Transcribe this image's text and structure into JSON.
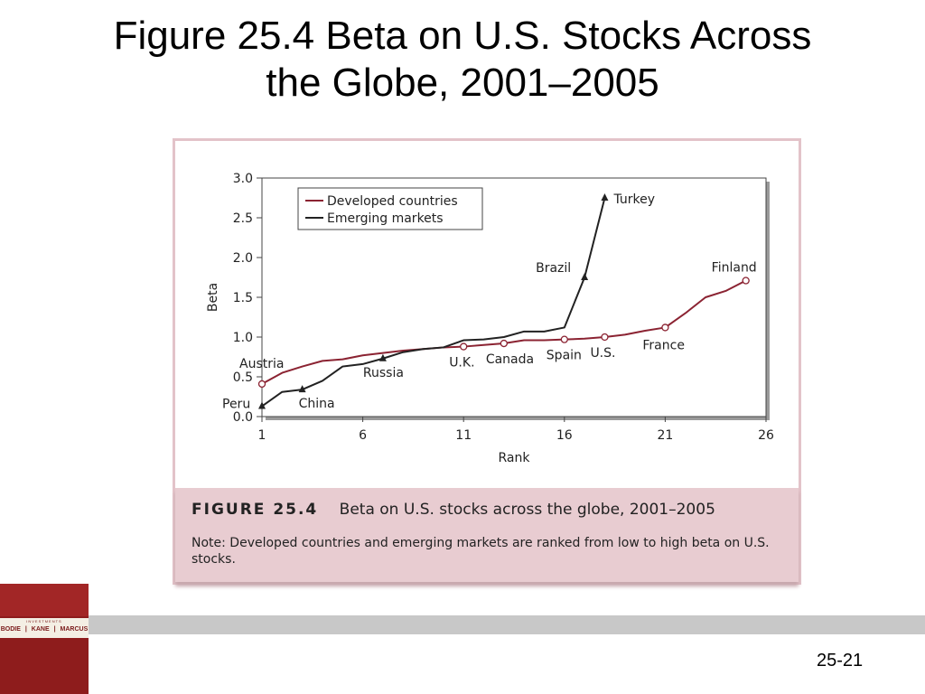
{
  "slide": {
    "title_line1": "Figure 25.4 Beta on U.S. Stocks Across",
    "title_line2": "the Globe, 2001–2005",
    "slide_number": "25-21"
  },
  "caption": {
    "label": "FIGURE 25.4",
    "title": "Beta on U.S. stocks across the globe, 2001–2005",
    "note": "Note: Developed countries and emerging markets are ranked from low to high beta on U.S. stocks."
  },
  "book": {
    "top_text": "INVESTMENTS",
    "authors": [
      "BODIE",
      "KANE",
      "MARCUS"
    ]
  },
  "chart_data": {
    "type": "line",
    "xlabel": "Rank",
    "ylabel": "Beta",
    "xlim": [
      1,
      26
    ],
    "ylim": [
      0,
      3
    ],
    "x_ticks": [
      1,
      6,
      11,
      16,
      21,
      26
    ],
    "y_ticks": [
      "0.0",
      "0.5",
      "1.0",
      "1.5",
      "2.0",
      "2.5",
      "3.0"
    ],
    "legend_position": "top-left",
    "series": [
      {
        "name": "Developed countries",
        "color": "#8b2332",
        "x": [
          1,
          2,
          3,
          4,
          5,
          6,
          7,
          8,
          9,
          10,
          11,
          12,
          13,
          14,
          15,
          16,
          17,
          18,
          19,
          20,
          21,
          22,
          23,
          24,
          25
        ],
        "y": [
          0.41,
          0.55,
          0.63,
          0.7,
          0.72,
          0.77,
          0.8,
          0.83,
          0.85,
          0.87,
          0.88,
          0.9,
          0.92,
          0.96,
          0.96,
          0.97,
          0.98,
          1.0,
          1.03,
          1.08,
          1.12,
          1.3,
          1.5,
          1.58,
          1.71
        ],
        "labeled_points": [
          {
            "x": 1,
            "y": 0.41,
            "label": "Austria"
          },
          {
            "x": 11,
            "y": 0.88,
            "label": "U.K."
          },
          {
            "x": 13,
            "y": 0.92,
            "label": "Canada"
          },
          {
            "x": 16,
            "y": 0.97,
            "label": "Spain"
          },
          {
            "x": 18,
            "y": 1.0,
            "label": "U.S."
          },
          {
            "x": 21,
            "y": 1.12,
            "label": "France"
          },
          {
            "x": 25,
            "y": 1.71,
            "label": "Finland"
          }
        ]
      },
      {
        "name": "Emerging markets",
        "color": "#222222",
        "x": [
          1,
          2,
          3,
          4,
          5,
          6,
          7,
          8,
          9,
          10,
          11,
          12,
          13,
          14,
          15,
          16,
          17,
          18
        ],
        "y": [
          0.13,
          0.31,
          0.34,
          0.45,
          0.63,
          0.66,
          0.73,
          0.81,
          0.85,
          0.87,
          0.96,
          0.97,
          1.0,
          1.07,
          1.07,
          1.12,
          1.75,
          2.75
        ],
        "labeled_points": [
          {
            "x": 1,
            "y": 0.13,
            "label": "Peru"
          },
          {
            "x": 3,
            "y": 0.34,
            "label": "China"
          },
          {
            "x": 7,
            "y": 0.73,
            "label": "Russia"
          },
          {
            "x": 17,
            "y": 1.75,
            "label": "Brazil"
          },
          {
            "x": 18,
            "y": 2.75,
            "label": "Turkey"
          }
        ]
      }
    ]
  }
}
